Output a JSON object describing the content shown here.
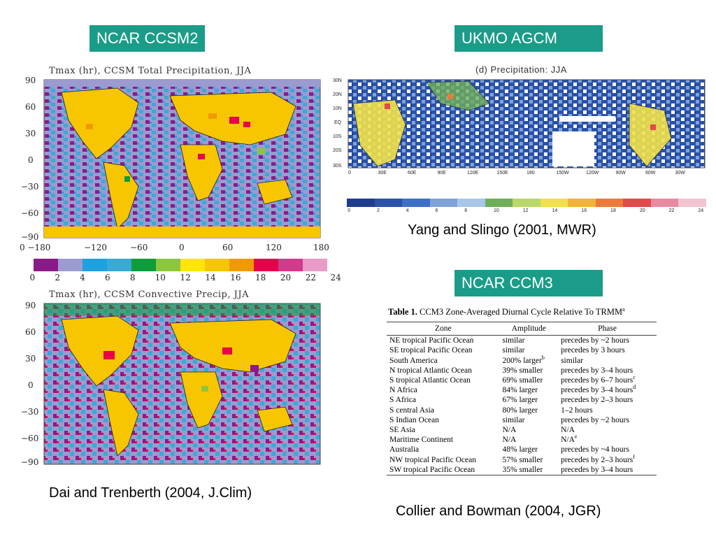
{
  "badges": {
    "ccsm2": "NCAR CCSM2",
    "ukmo": "UKMO AGCM",
    "ccm3": "NCAR CCM3"
  },
  "captions": {
    "dai": "Dai and Trenberth (2004, J.Clim)",
    "yang": "Yang and Slingo (2001, MWR)",
    "collier": "Collier and Bowman (2004, JGR)"
  },
  "map_total": {
    "title": "Tmax (hr), CCSM Total Precipitation, JJA",
    "lat_ticks": [
      "90",
      "60",
      "30",
      "0",
      "−30",
      "−60",
      "−90"
    ],
    "lon_ticks": [
      "0 −180",
      "−120",
      "−60",
      "0",
      "60",
      "120",
      "180"
    ]
  },
  "map_conv": {
    "title": "Tmax (hr), CCSM Convective Precip, JJA",
    "lat_ticks": [
      "90",
      "60",
      "30",
      "0",
      "−30",
      "−60",
      "−90"
    ]
  },
  "ccsm_colorbar": {
    "colors": [
      "#8b1a89",
      "#9b9bcf",
      "#1da1e0",
      "#3aa9d6",
      "#0f9c3a",
      "#8cc63f",
      "#ffe600",
      "#f7c600",
      "#f09a00",
      "#e8004a",
      "#d23a8c",
      "#e89ac8"
    ],
    "labels": [
      "0",
      "2",
      "4",
      "6",
      "8",
      "10",
      "12",
      "14",
      "16",
      "18",
      "20",
      "22",
      "24"
    ]
  },
  "ukmo_map": {
    "title": "(d) Precipitation: JJA",
    "lat_ticks": [
      "30N",
      "20N",
      "10N",
      "EQ",
      "10S",
      "20S",
      "30S"
    ],
    "lon_ticks": [
      "0",
      "30E",
      "60E",
      "90E",
      "120E",
      "150E",
      "180",
      "150W",
      "120W",
      "90W",
      "60W",
      "30W"
    ]
  },
  "ukmo_colorbar": {
    "colors": [
      "#1f3b8c",
      "#2a52a8",
      "#3d6fc6",
      "#7fa3d9",
      "#a9c6e8",
      "#6fae5a",
      "#b9d86a",
      "#f0e04a",
      "#f3b23a",
      "#ec7a3a",
      "#e04a4a",
      "#e88aa0",
      "#f2c4d2"
    ],
    "labels": [
      "0",
      "2",
      "4",
      "6",
      "8",
      "10",
      "12",
      "14",
      "16",
      "18",
      "20",
      "22",
      "24"
    ]
  },
  "table": {
    "caption_bold": "Table 1.",
    "caption_text": "CCM3 Zone-Averaged Diurnal Cycle Relative To TRMM",
    "caption_sup": "a",
    "headers": [
      "Zone",
      "Amplitude",
      "Phase"
    ],
    "rows": [
      [
        "NE tropical Pacific Ocean",
        "similar",
        "precedes by ~2 hours"
      ],
      [
        "SE tropical Pacific Ocean",
        "similar",
        "precedes by 3 hours"
      ],
      [
        "South America",
        "200% larger",
        "similar"
      ],
      [
        "N tropical Atlantic Ocean",
        "39% smaller",
        "precedes by 3–4 hours"
      ],
      [
        "S tropical Atlantic Ocean",
        "69% smaller",
        "precedes by 6–7 hours"
      ],
      [
        "N Africa",
        "84% larger",
        "precedes by 3–4 hours"
      ],
      [
        "S Africa",
        "67% larger",
        "precedes by 2–3 hours"
      ],
      [
        "S central Asia",
        "80% larger",
        "1–2 hours"
      ],
      [
        "S Indian Ocean",
        "similar",
        "precedes by ~2 hours"
      ],
      [
        "SE Asia",
        "N/A",
        "N/A"
      ],
      [
        "Maritime Continent",
        "N/A",
        "N/A"
      ],
      [
        "Australia",
        "48% larger",
        "precedes by ~4 hours"
      ],
      [
        "NW tropical Pacific Ocean",
        "57% smaller",
        "precedes by 2–3 hours"
      ],
      [
        "SW tropical Pacific Ocean",
        "35% smaller",
        "precedes by 3–4 hours"
      ]
    ],
    "superscripts": {
      "amp_2": "b",
      "phase_4": "c",
      "phase_5": "d",
      "phase_10": "e",
      "phase_12": "f"
    }
  }
}
